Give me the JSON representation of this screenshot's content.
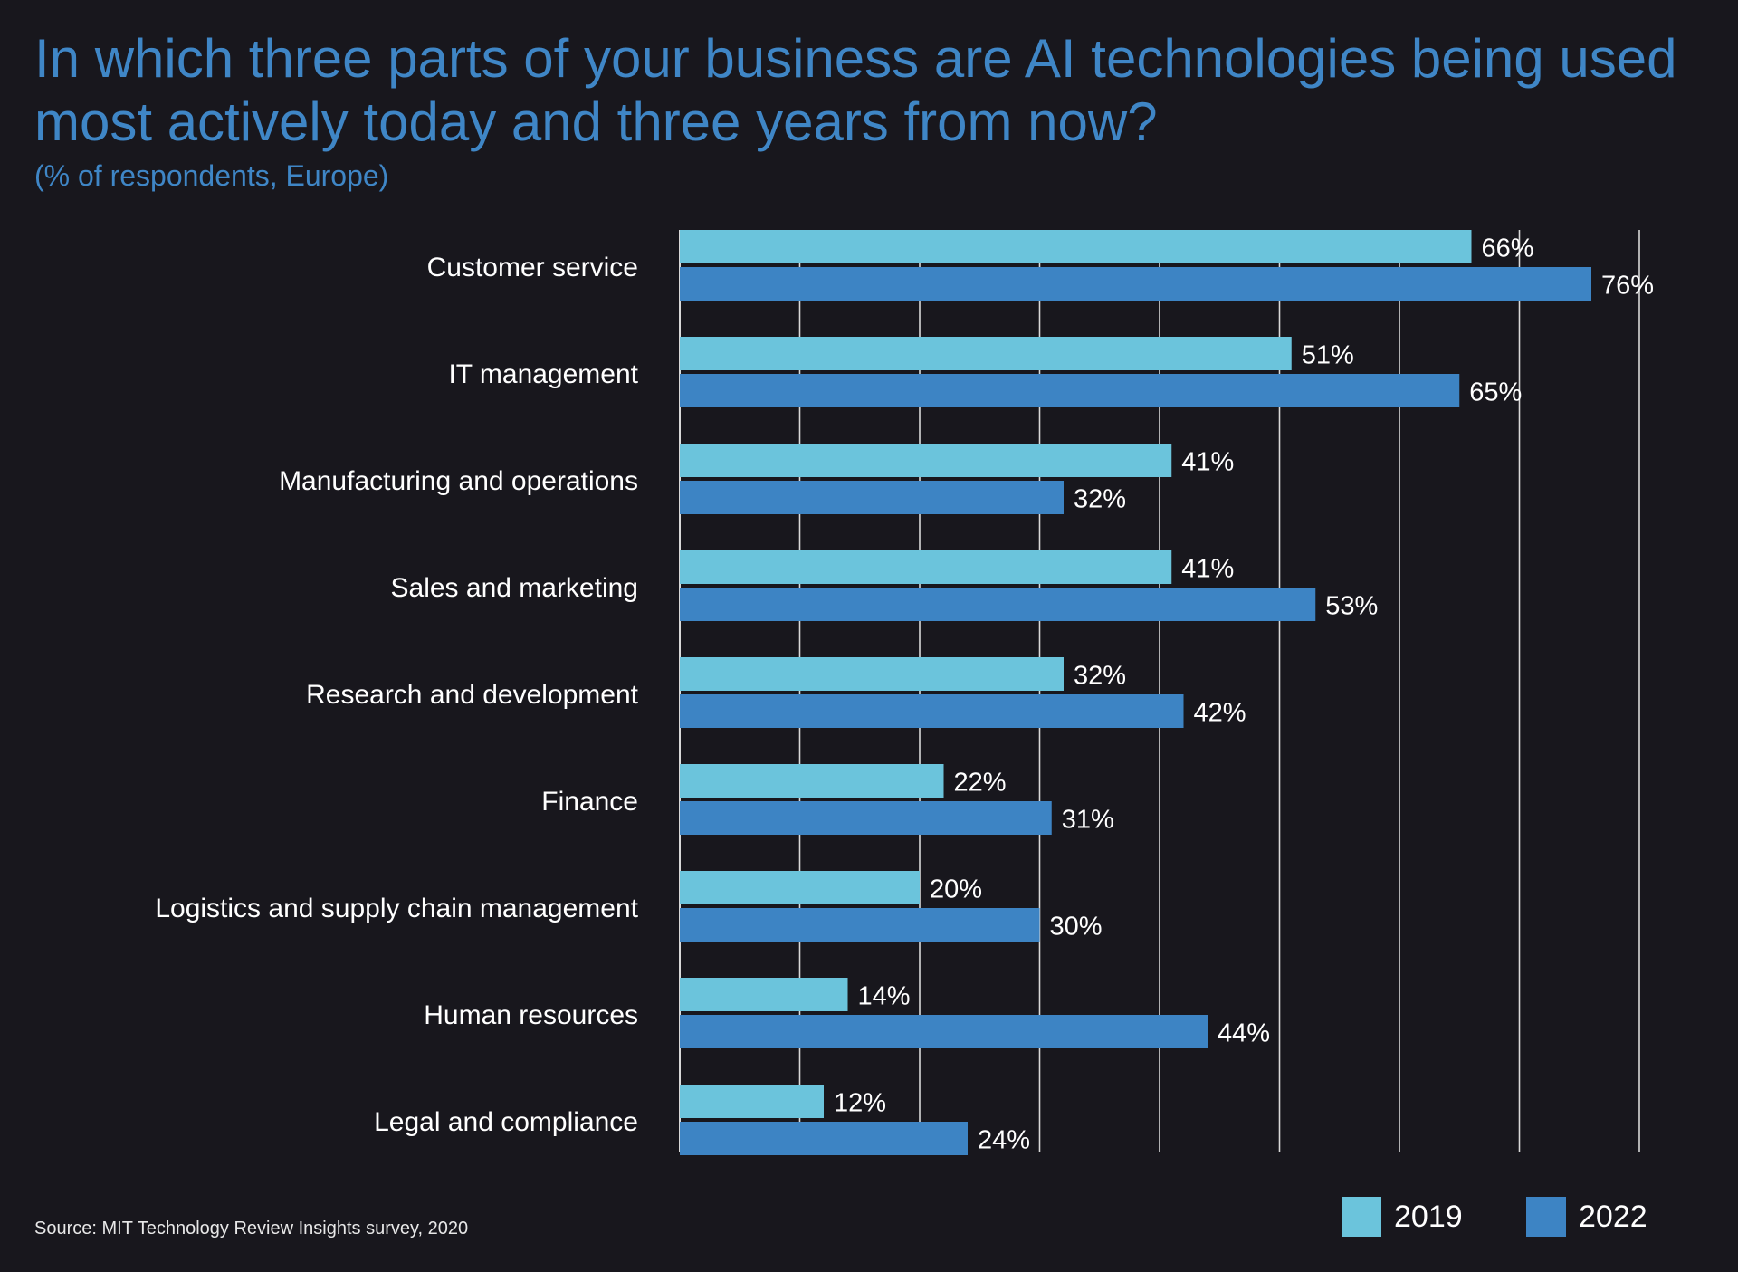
{
  "chart_data": {
    "type": "bar",
    "orientation": "horizontal",
    "title": "In which three parts of your business are AI technologies being used most actively today and three years from now?",
    "subtitle": "(% of respondents, Europe)",
    "categories": [
      "Customer service",
      "IT management",
      "Manufacturing and operations",
      "Sales and marketing",
      "Research and development",
      "Finance",
      "Logistics and supply chain management",
      "Human resources",
      "Legal and compliance"
    ],
    "series": [
      {
        "name": "2019",
        "color": "#6bc4dc",
        "values": [
          66,
          51,
          41,
          41,
          32,
          22,
          20,
          14,
          12
        ],
        "labels": [
          "66%",
          "51%",
          "41%",
          "41%",
          "32%",
          "22%",
          "20%",
          "14%",
          "12%"
        ]
      },
      {
        "name": "2022",
        "color": "#3d84c4",
        "values": [
          76,
          65,
          32,
          53,
          42,
          31,
          30,
          44,
          24
        ],
        "labels": [
          "76%",
          "65%",
          "32%",
          "53%",
          "42%",
          "31%",
          "30%",
          "44%",
          "24%"
        ]
      }
    ],
    "xlim": [
      0,
      80
    ],
    "grid": true,
    "legend": "bottom-right",
    "source": "Source: MIT Technology Review Insights survey, 2020"
  }
}
